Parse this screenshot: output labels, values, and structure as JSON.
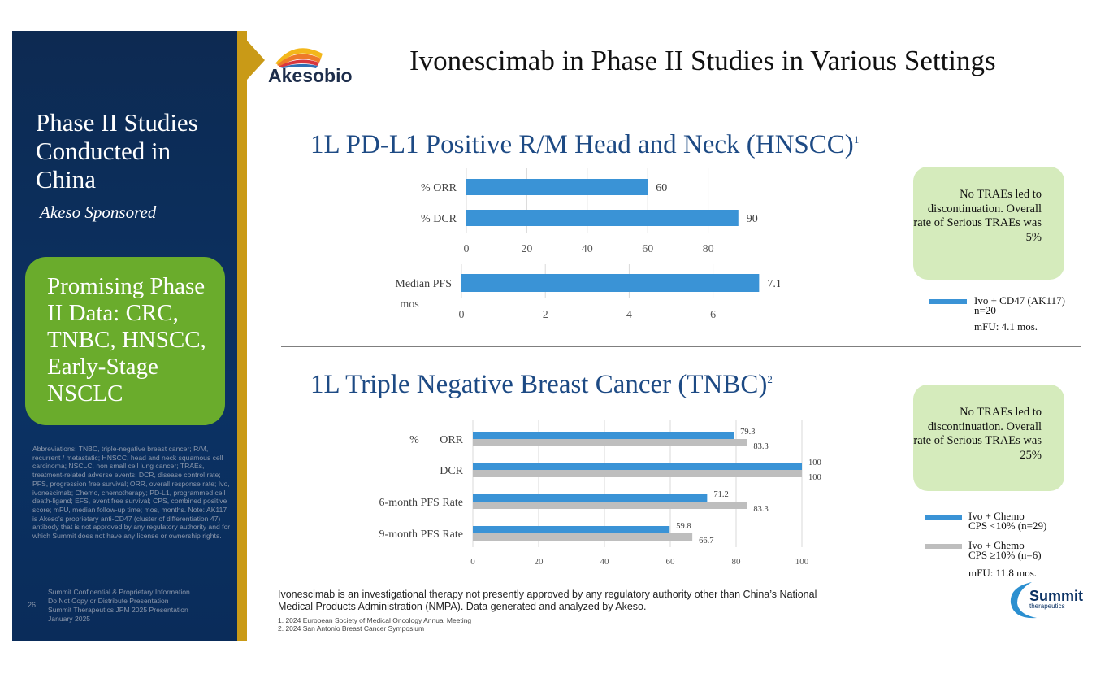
{
  "slide": {
    "title": "Ivonescimab in Phase II Studies in Various Settings",
    "page_number": "26"
  },
  "logo": {
    "company": "Akesobio",
    "partner": "Summit",
    "partner_sub": "therapeutics"
  },
  "sidebar": {
    "title": "Phase II Studies Conducted in China",
    "subtitle": "Akeso Sponsored",
    "highlight": "Promising Phase II Data: CRC, TNBC, HNSCC, Early-Stage NSCLC",
    "abbreviations": "Abbreviations: TNBC, triple-negative breast cancer; R/M, recurrent / metastatic; HNSCC, head and neck squamous cell carcinoma; NSCLC, non small cell lung cancer; TRAEs, treatment-related adverse events; DCR, disease control rate; PFS, progression free survival; ORR, overall response rate; Ivo, ivonescimab; Chemo, chemotherapy; PD-L1, programmed cell death-ligand; EFS, event free survival; CPS, combined positive score; mFU, median follow-up time; mos, months.  Note: AK117 is Akeso's proprietary anti-CD47 (cluster of differentiation 47) antibody that is not approved by any regulatory authority and for which Summit does not have any license or ownership rights.",
    "confidential": [
      "Summit Confidential & Proprietary Information",
      "Do Not Copy or Distribute Presentation",
      "Summit Therapeutics JPM 2025 Presentation",
      "January 2025"
    ]
  },
  "hnscc": {
    "title": "1L PD-L1 Positive R/M Head and Neck (HNSCC)",
    "superscript": "1",
    "note": "No TRAEs led to discontinuation. Overall rate of Serious TRAEs was 5%",
    "legend": {
      "line1": "Ivo + CD47 (AK117)",
      "line2": "n=20",
      "line3": "mFU: 4.1 mos."
    },
    "colors": {
      "bar": "#3a93d6"
    }
  },
  "tnbc": {
    "title": "1L Triple Negative Breast Cancer (TNBC)",
    "superscript": "2",
    "note": "No TRAEs led to discontinuation. Overall rate of Serious TRAEs was 25%",
    "legend": {
      "s1_line1": "Ivo + Chemo",
      "s1_line2": "CPS <10% (n=29)",
      "s2_line1": "Ivo + Chemo",
      "s2_line2": "CPS ≥10% (n=6)",
      "mfu": "mFU: 11.8 mos."
    },
    "colors": {
      "s1": "#3a93d6",
      "s2": "#bebebe"
    }
  },
  "chart_data": [
    {
      "type": "bar",
      "orientation": "horizontal",
      "categories": [
        "ORR",
        "DCR"
      ],
      "category_prefix": "%",
      "values": [
        60,
        90
      ],
      "xlim": [
        0,
        100
      ],
      "xticks": [
        0,
        20,
        40,
        60,
        80
      ],
      "grid": true
    },
    {
      "type": "bar",
      "orientation": "horizontal",
      "categories": [
        "Median PFS"
      ],
      "ylabel": "mos",
      "values": [
        7.1
      ],
      "xlim": [
        0,
        8
      ],
      "xticks": [
        0,
        2,
        4,
        6
      ],
      "grid": true
    },
    {
      "type": "bar",
      "orientation": "horizontal",
      "categories": [
        "ORR",
        "DCR",
        "6-month PFS Rate",
        "9-month PFS Rate"
      ],
      "category_prefix": "%",
      "series": [
        {
          "name": "Ivo + Chemo CPS <10% (n=29)",
          "values": [
            79.3,
            100,
            71.2,
            59.8
          ]
        },
        {
          "name": "Ivo + Chemo CPS ≥10% (n=6)",
          "values": [
            83.3,
            100,
            83.3,
            66.7
          ]
        }
      ],
      "xlim": [
        0,
        100
      ],
      "xticks": [
        0,
        20,
        40,
        60,
        80,
        100
      ],
      "grid": true
    }
  ],
  "footer": {
    "disclaimer": "Ivonescimab is an investigational therapy not presently approved by any regulatory authority other than China’s National Medical Products Administration (NMPA). Data generated and analyzed by Akeso.",
    "refs": [
      "1.  2024 European Society of Medical Oncology Annual Meeting",
      "2.  2024 San Antonio Breast Cancer Symposium"
    ]
  }
}
